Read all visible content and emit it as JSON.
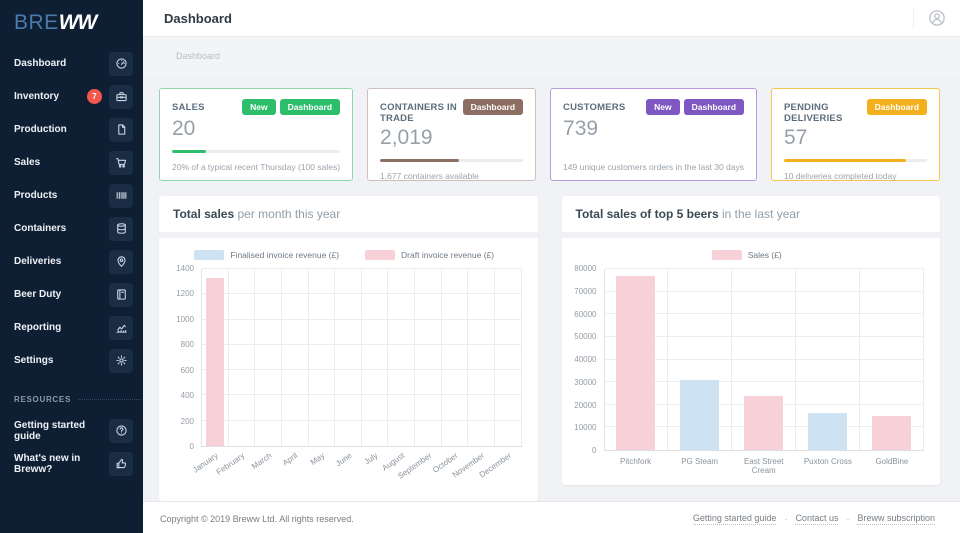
{
  "app": {
    "logo_part1": "BRE",
    "logo_part2": "WW"
  },
  "sidebar": {
    "items": [
      {
        "label": "Dashboard",
        "icon": "gauge-icon"
      },
      {
        "label": "Inventory",
        "icon": "toolbox-icon",
        "badge": "7"
      },
      {
        "label": "Production",
        "icon": "document-icon"
      },
      {
        "label": "Sales",
        "icon": "cart-icon"
      },
      {
        "label": "Products",
        "icon": "barcode-icon"
      },
      {
        "label": "Containers",
        "icon": "keg-icon"
      },
      {
        "label": "Deliveries",
        "icon": "map-pin-icon"
      },
      {
        "label": "Beer Duty",
        "icon": "book-icon"
      },
      {
        "label": "Reporting",
        "icon": "report-chart-icon"
      },
      {
        "label": "Settings",
        "icon": "gear-icon"
      }
    ],
    "resources_header": "RESOURCES",
    "resources": [
      {
        "label": "Getting started guide",
        "icon": "question-icon"
      },
      {
        "label": "What's new in Breww?",
        "icon": "thumbs-up-icon"
      }
    ]
  },
  "header": {
    "title": "Dashboard"
  },
  "breadcrumb": {
    "current": "Dashboard"
  },
  "cards": [
    {
      "label": "SALES",
      "value": "20",
      "buttons": [
        "New",
        "Dashboard"
      ],
      "subtitle": "20% of a typical recent Thursday (100 sales)",
      "accent_color": "#2dbe6c",
      "border_color": "#8fd8ae",
      "progress_pct": 20
    },
    {
      "label": "CONTAINERS IN TRADE",
      "value": "2,019",
      "buttons": [
        "Dashboard"
      ],
      "subtitle": "1,677 containers available",
      "accent_color": "#8d6e63",
      "border_color": "#cdc0ba",
      "progress_pct": 55
    },
    {
      "label": "CUSTOMERS",
      "value": "739",
      "buttons": [
        "New",
        "Dashboard"
      ],
      "subtitle": "149 unique customers orders in the last 30 days",
      "accent_color": "#7e57c2",
      "border_color": "#b79ce0",
      "progress_pct": null
    },
    {
      "label": "PENDING DELIVERIES",
      "value": "57",
      "buttons": [
        "Dashboard"
      ],
      "subtitle": "10 deliveries completed today",
      "accent_color": "#f2b01e",
      "border_color": "#f3c64d",
      "progress_pct": 85
    }
  ],
  "chart_data": [
    {
      "type": "bar",
      "title_bold": "Total sales",
      "title_rest": " per month this year",
      "categories": [
        "January",
        "February",
        "March",
        "April",
        "May",
        "June",
        "July",
        "August",
        "September",
        "October",
        "November",
        "December"
      ],
      "series": [
        {
          "name": "Finalised invoice revenue (£)",
          "color": "#cde2f2",
          "values": [
            0,
            0,
            0,
            0,
            0,
            0,
            0,
            0,
            0,
            0,
            0,
            0
          ]
        },
        {
          "name": "Draft invoice revenue (£)",
          "color": "#f8d0d8",
          "values": [
            1330,
            0,
            0,
            0,
            0,
            0,
            0,
            0,
            0,
            0,
            0,
            0
          ]
        }
      ],
      "ylim": [
        0,
        1400
      ],
      "ytick_step": 200,
      "grid": true,
      "legend_position": "top",
      "x_label_rotation": -35
    },
    {
      "type": "bar",
      "title_bold": "Total sales of top 5 beers",
      "title_rest": " in the last year",
      "categories": [
        "Pitchfork",
        "PG Steam",
        "East Street Cream",
        "Puxton Cross",
        "GoldBine"
      ],
      "series": [
        {
          "name": "Sales (£)",
          "color": "#f8d0d8",
          "colors": [
            "#f8d0d8",
            "#cde2f2",
            "#f8d0d8",
            "#cde2f2",
            "#f8d0d8"
          ],
          "values": [
            77000,
            31000,
            23800,
            16300,
            15000
          ]
        }
      ],
      "ylim": [
        0,
        80000
      ],
      "ytick_step": 10000,
      "grid": true,
      "legend_position": "top",
      "x_label_rotation": 0
    }
  ],
  "footer": {
    "copyright": "Copyright © 2019 Breww Ltd. All rights reserved.",
    "links": [
      "Getting started guide",
      "Contact us",
      "Breww subscription"
    ],
    "separator": "·"
  }
}
